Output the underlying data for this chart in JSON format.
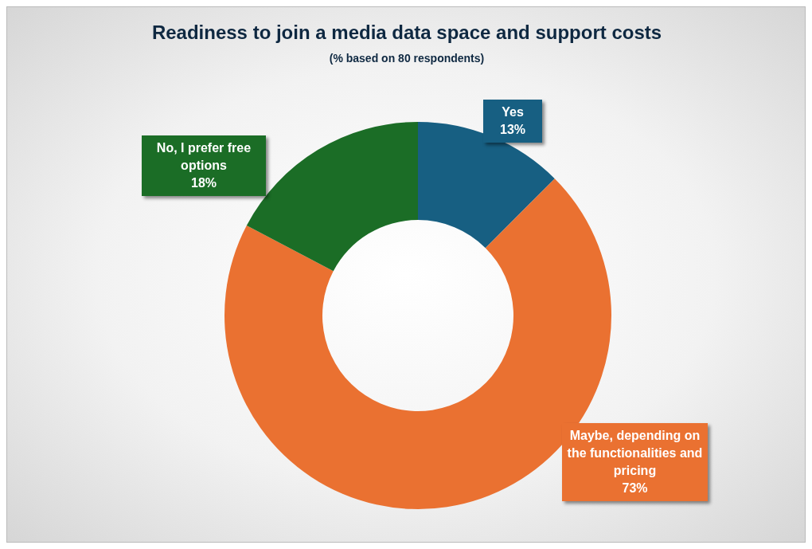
{
  "chart_data": {
    "type": "donut",
    "title": "Readiness to join a media data space and support costs",
    "subtitle": "(% based on 80 respondents)",
    "categories": [
      "Yes",
      "Maybe, depending on the functionalities and pricing",
      "No, I prefer free options"
    ],
    "values": [
      13,
      73,
      18
    ],
    "value_labels": [
      "13%",
      "73%",
      "18%"
    ],
    "colors": [
      "#175f82",
      "#ea7131",
      "#1b6d26"
    ]
  }
}
